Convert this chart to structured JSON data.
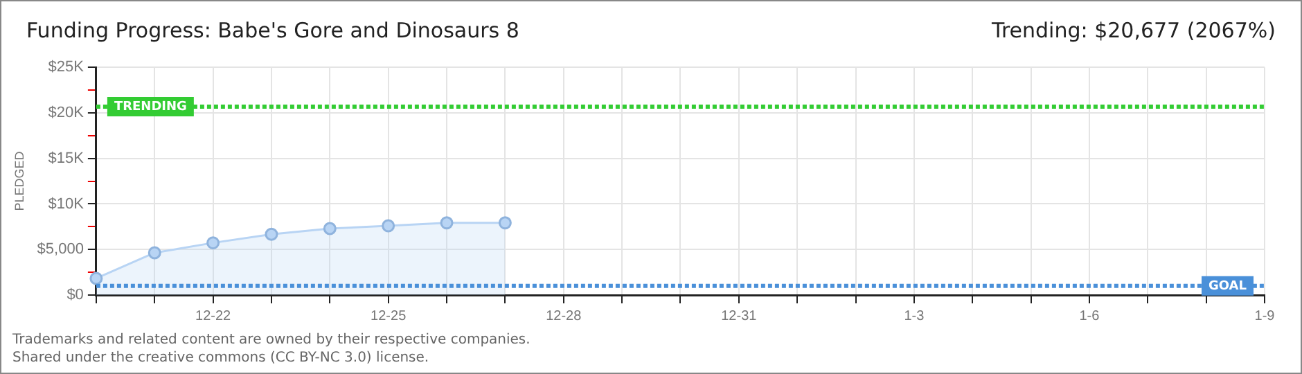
{
  "chart_data": {
    "type": "area",
    "title": "Funding Progress: Babe's Gore and Dinosaurs 8",
    "subtitle": "Trending: $20,677 (2067%)",
    "ylabel": "PLEDGED",
    "categories": [
      null,
      null,
      "12-22",
      null,
      null,
      "12-25",
      null,
      null,
      "12-28",
      null,
      null,
      "12-31",
      null,
      null,
      "1-3",
      null,
      null,
      "1-6",
      null,
      null,
      "1-9"
    ],
    "series": [
      {
        "color": "#b8d4f4",
        "values": [
          1830,
          4640,
          5730,
          6670,
          7300,
          7600,
          7920,
          7920,
          null,
          null,
          null,
          null,
          null,
          null,
          null,
          null,
          null,
          null,
          null,
          null,
          null
        ]
      }
    ],
    "ylim": [
      0,
      25000
    ],
    "yticks": [
      {
        "value": 0,
        "label": "$0"
      },
      {
        "value": 2500,
        "label": null
      },
      {
        "value": 5000,
        "label": "$5,000"
      },
      {
        "value": 7500,
        "label": null
      },
      {
        "value": 10000,
        "label": "$10K"
      },
      {
        "value": 12500,
        "label": null
      },
      {
        "value": 15000,
        "label": "$15K"
      },
      {
        "value": 17500,
        "label": null
      },
      {
        "value": 20000,
        "label": "$20K"
      },
      {
        "value": 22500,
        "label": null
      },
      {
        "value": 25000,
        "label": "$25K"
      }
    ],
    "ref_lines": [
      {
        "axis": "y",
        "value": 20677,
        "label": "TRENDING",
        "color": "#33cc33",
        "line_style": "dotted"
      },
      {
        "axis": "y",
        "value": 1000,
        "label": "GOAL",
        "color": "#4a90d9",
        "line_style": "dotted"
      }
    ],
    "grid": true,
    "legend": false,
    "marker": "circle",
    "annotations": [
      "Trademarks and related content are owned by their respective companies.",
      "Shared under the creative commons (CC BY-NC 3.0) license."
    ]
  }
}
